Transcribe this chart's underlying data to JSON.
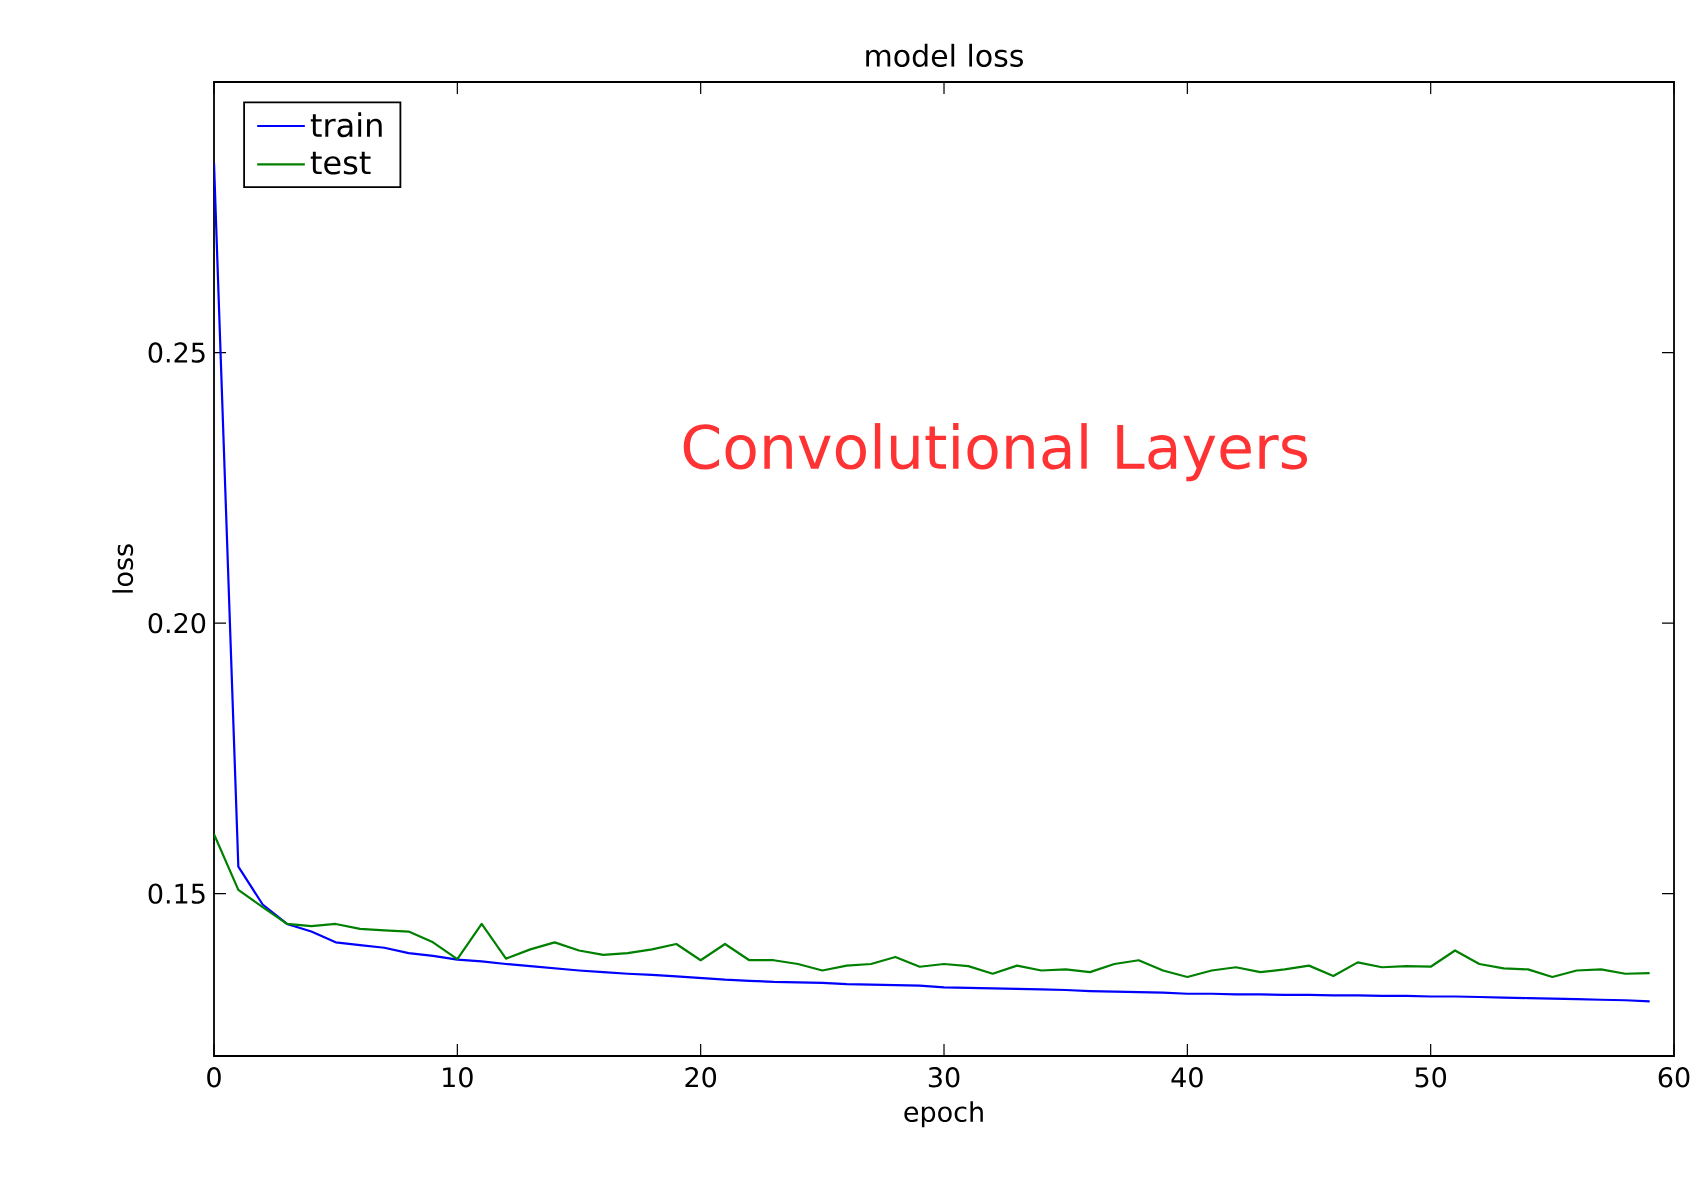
{
  "chart_data": {
    "type": "line",
    "title": "model loss",
    "xlabel": "epoch",
    "ylabel": "loss",
    "annotations": [
      "Convolutional Layers"
    ],
    "x": [
      0,
      1,
      2,
      3,
      4,
      5,
      6,
      7,
      8,
      9,
      10,
      11,
      12,
      13,
      14,
      15,
      16,
      17,
      18,
      19,
      20,
      21,
      22,
      23,
      24,
      25,
      26,
      27,
      28,
      29,
      30,
      31,
      32,
      33,
      34,
      35,
      36,
      37,
      38,
      39,
      40,
      41,
      42,
      43,
      44,
      45,
      46,
      47,
      48,
      49,
      50,
      51,
      52,
      53,
      54,
      55,
      56,
      57,
      58,
      59
    ],
    "series": [
      {
        "name": "train",
        "color": "#0000ff",
        "values": [
          0.285,
          0.155,
          0.148,
          0.1444,
          0.143,
          0.141,
          0.1405,
          0.14,
          0.139,
          0.1385,
          0.1378,
          0.1375,
          0.137,
          0.1366,
          0.1362,
          0.1358,
          0.1355,
          0.1352,
          0.135,
          0.1347,
          0.1344,
          0.1341,
          0.1339,
          0.1337,
          0.1336,
          0.1335,
          0.1333,
          0.1332,
          0.1331,
          0.133,
          0.1327,
          0.1326,
          0.1325,
          0.1324,
          0.1323,
          0.1322,
          0.132,
          0.1319,
          0.1318,
          0.1317,
          0.1315,
          0.1315,
          0.1314,
          0.1314,
          0.1313,
          0.1313,
          0.1312,
          0.1312,
          0.1311,
          0.1311,
          0.131,
          0.131,
          0.1309,
          0.1308,
          0.1307,
          0.1306,
          0.1305,
          0.1304,
          0.1303,
          0.1301
        ]
      },
      {
        "name": "test",
        "color": "#008000",
        "values": [
          0.161,
          0.1507,
          0.1475,
          0.1444,
          0.144,
          0.1444,
          0.1435,
          0.1432,
          0.143,
          0.141,
          0.1379,
          0.1444,
          0.138,
          0.1397,
          0.141,
          0.1395,
          0.1387,
          0.139,
          0.1397,
          0.1407,
          0.1377,
          0.1407,
          0.1377,
          0.1377,
          0.137,
          0.1358,
          0.1367,
          0.137,
          0.1383,
          0.1365,
          0.137,
          0.1366,
          0.1352,
          0.1367,
          0.1358,
          0.136,
          0.1355,
          0.137,
          0.1377,
          0.1358,
          0.1346,
          0.1358,
          0.1364,
          0.1355,
          0.136,
          0.1367,
          0.1348,
          0.1373,
          0.1364,
          0.1366,
          0.1365,
          0.1395,
          0.137,
          0.1362,
          0.136,
          0.1346,
          0.1358,
          0.136,
          0.1352,
          0.1353
        ]
      }
    ],
    "xlim": [
      0,
      60
    ],
    "ylim": [
      0.12,
      0.3
    ],
    "xticks": [
      0,
      10,
      20,
      30,
      40,
      50,
      60
    ],
    "yticks": [
      0.15,
      {
        "value": 0.2,
        "label": "0.20"
      },
      0.25
    ],
    "legend": "top left"
  }
}
